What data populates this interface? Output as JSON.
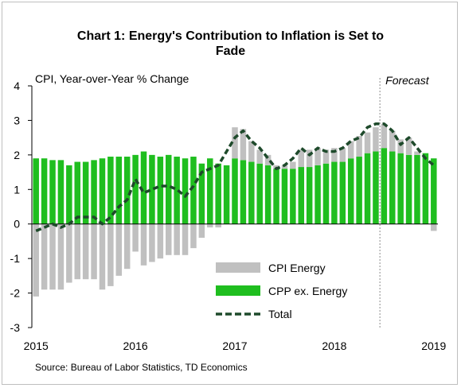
{
  "title_line1": "Chart 1: Energy's Contribution to Inflation is Set to",
  "title_line2": "Fade",
  "source": "Source: Bureau of Labor Statistics, TD Economics",
  "chart_data": {
    "type": "bar",
    "title": "Chart 1: Energy's Contribution to Inflation is Set to Fade",
    "ylabel": "CPI, Year-over-Year % Change",
    "ylim": [
      -3,
      4
    ],
    "yticks": [
      "-3",
      "-2",
      "-1",
      "0",
      "1",
      "2",
      "3",
      "4"
    ],
    "xticks": [
      "2015",
      "2016",
      "2017",
      "2018",
      "2019"
    ],
    "forecast_label": "Forecast",
    "forecast_start": "2018-07",
    "grid": false,
    "stacked": true,
    "legend_position": "bottom-center",
    "colors": {
      "energy": "#c0c0c0",
      "core": "#1fbe1f",
      "total": "#1e4a2b"
    },
    "x": [
      "2015-01",
      "2015-02",
      "2015-03",
      "2015-04",
      "2015-05",
      "2015-06",
      "2015-07",
      "2015-08",
      "2015-09",
      "2015-10",
      "2015-11",
      "2015-12",
      "2016-01",
      "2016-02",
      "2016-03",
      "2016-04",
      "2016-05",
      "2016-06",
      "2016-07",
      "2016-08",
      "2016-09",
      "2016-10",
      "2016-11",
      "2016-12",
      "2017-01",
      "2017-02",
      "2017-03",
      "2017-04",
      "2017-05",
      "2017-06",
      "2017-07",
      "2017-08",
      "2017-09",
      "2017-10",
      "2017-11",
      "2017-12",
      "2018-01",
      "2018-02",
      "2018-03",
      "2018-04",
      "2018-05",
      "2018-06",
      "2018-07",
      "2018-08",
      "2018-09",
      "2018-10",
      "2018-11",
      "2018-12",
      "2019-01"
    ],
    "series": [
      {
        "name": "CPI Energy",
        "type": "bar",
        "values": [
          -2.1,
          -1.9,
          -1.9,
          -1.9,
          -1.7,
          -1.6,
          -1.6,
          -1.6,
          -1.9,
          -1.8,
          -1.5,
          -1.3,
          -0.8,
          -1.2,
          -1.1,
          -1.0,
          -0.9,
          -0.9,
          -0.9,
          -0.7,
          -0.4,
          -0.1,
          -0.1,
          0.0,
          0.9,
          0.9,
          0.6,
          0.4,
          0.3,
          0.1,
          0.1,
          0.2,
          0.5,
          0.5,
          0.5,
          0.4,
          0.4,
          0.4,
          0.5,
          0.6,
          0.6,
          0.7,
          0.7,
          0.6,
          0.4,
          0.5,
          0.1,
          0.0,
          -0.2
        ]
      },
      {
        "name": "CPP ex. Energy",
        "type": "bar",
        "values": [
          1.9,
          1.9,
          1.85,
          1.85,
          1.7,
          1.8,
          1.8,
          1.85,
          1.9,
          1.95,
          1.95,
          1.95,
          2.0,
          2.1,
          2.0,
          1.95,
          2.0,
          1.95,
          1.9,
          1.95,
          1.75,
          1.9,
          1.75,
          1.7,
          1.9,
          1.85,
          1.8,
          1.75,
          1.7,
          1.6,
          1.6,
          1.6,
          1.65,
          1.65,
          1.7,
          1.75,
          1.8,
          1.8,
          1.9,
          1.95,
          2.05,
          2.1,
          2.2,
          2.1,
          2.05,
          2.0,
          2.0,
          2.05,
          1.9
        ]
      },
      {
        "name": "Total",
        "type": "line",
        "values": [
          -0.2,
          -0.1,
          0.0,
          -0.1,
          0.0,
          0.2,
          0.2,
          0.2,
          0.0,
          0.2,
          0.5,
          0.7,
          1.3,
          0.9,
          1.0,
          1.1,
          1.1,
          1.0,
          0.8,
          1.1,
          1.5,
          1.6,
          1.7,
          2.1,
          2.5,
          2.7,
          2.4,
          2.2,
          1.9,
          1.6,
          1.7,
          1.9,
          2.2,
          2.0,
          2.2,
          2.1,
          2.1,
          2.2,
          2.4,
          2.5,
          2.8,
          2.9,
          2.9,
          2.7,
          2.3,
          2.5,
          2.2,
          1.9,
          1.7
        ]
      }
    ],
    "legend": [
      "CPI Energy",
      "CPP ex. Energy",
      "Total"
    ]
  }
}
